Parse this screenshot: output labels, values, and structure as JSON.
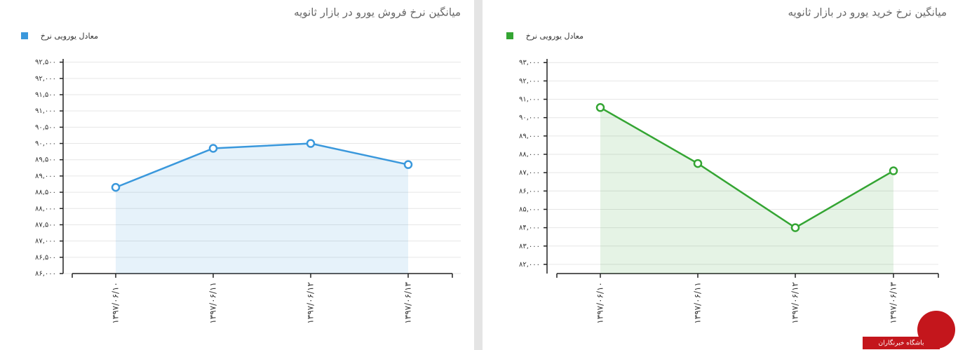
{
  "chart_data": [
    {
      "type": "line",
      "title": "میانگین نرخ فروش یورو در بازار ثانویه",
      "categories": [
        "۱۳۹۷/۰۶/۱۰",
        "۱۳۹۷/۰۶/۱۱",
        "۱۳۹۷/۰۶/۱۲",
        "۱۳۹۷/۰۶/۱۳"
      ],
      "series": [
        {
          "name": "معادل یورویی نرخ",
          "color": "#3a98dc",
          "values": [
            88650,
            89850,
            90000,
            89350
          ]
        }
      ],
      "ylim": [
        86000,
        92600
      ],
      "yticks": [
        {
          "value": 86000,
          "label": "۸۶,۰۰۰"
        },
        {
          "value": 86500,
          "label": "۸۶,۵۰۰"
        },
        {
          "value": 87000,
          "label": "۸۷,۰۰۰"
        },
        {
          "value": 87500,
          "label": "۸۷,۵۰۰"
        },
        {
          "value": 88000,
          "label": "۸۸,۰۰۰"
        },
        {
          "value": 88500,
          "label": "۸۸,۵۰۰"
        },
        {
          "value": 89000,
          "label": "۸۹,۰۰۰"
        },
        {
          "value": 89500,
          "label": "۸۹,۵۰۰"
        },
        {
          "value": 90000,
          "label": "۹۰,۰۰۰"
        },
        {
          "value": 90500,
          "label": "۹۰,۵۰۰"
        },
        {
          "value": 91000,
          "label": "۹۱,۰۰۰"
        },
        {
          "value": 91500,
          "label": "۹۱,۵۰۰"
        },
        {
          "value": 92000,
          "label": "۹۲,۰۰۰"
        },
        {
          "value": 92500,
          "label": "۹۲,۵۰۰"
        }
      ],
      "grid": true
    },
    {
      "type": "line",
      "title": "میانگین نرخ خرید یورو در بازار ثانویه",
      "categories": [
        "۱۳۹۷/۰۶/۱۰",
        "۱۳۹۷/۰۶/۱۱",
        "۱۳۹۷/۰۶/۱۲",
        "۱۳۹۷/۰۶/۱۳"
      ],
      "series": [
        {
          "name": "معادل یورویی نرخ",
          "color": "#34a533",
          "values": [
            90550,
            87500,
            84000,
            87100
          ]
        }
      ],
      "ylim": [
        81500,
        93200
      ],
      "yticks": [
        {
          "value": 82000,
          "label": "۸۲,۰۰۰"
        },
        {
          "value": 83000,
          "label": "۸۳,۰۰۰"
        },
        {
          "value": 84000,
          "label": "۸۴,۰۰۰"
        },
        {
          "value": 85000,
          "label": "۸۵,۰۰۰"
        },
        {
          "value": 86000,
          "label": "۸۶,۰۰۰"
        },
        {
          "value": 87000,
          "label": "۸۷,۰۰۰"
        },
        {
          "value": 88000,
          "label": "۸۸,۰۰۰"
        },
        {
          "value": 89000,
          "label": "۸۹,۰۰۰"
        },
        {
          "value": 90000,
          "label": "۹۰,۰۰۰"
        },
        {
          "value": 91000,
          "label": "۹۱,۰۰۰"
        },
        {
          "value": 92000,
          "label": "۹۲,۰۰۰"
        },
        {
          "value": 93000,
          "label": "۹۳,۰۰۰"
        }
      ],
      "grid": true
    }
  ],
  "watermark": "باشگاه خبرنگاران"
}
